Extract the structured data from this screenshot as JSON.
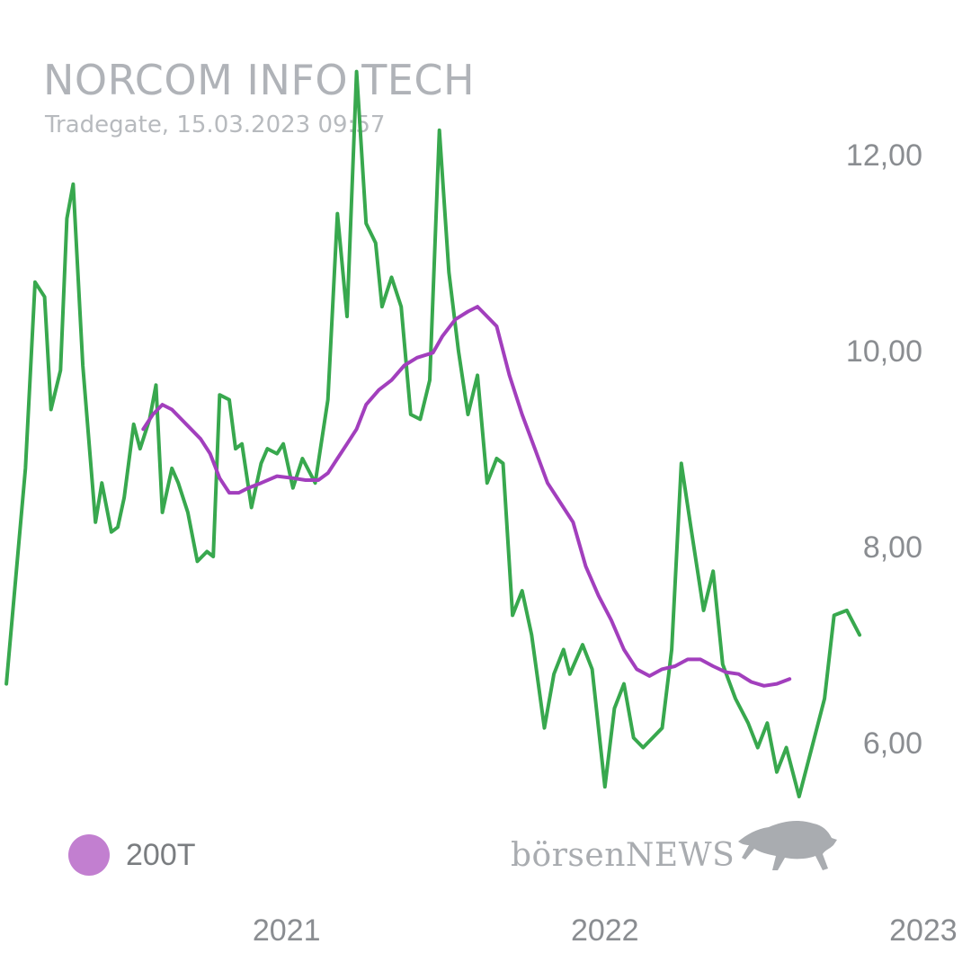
{
  "header": {
    "title": "NORCOM INFO TECH",
    "subtitle": "Tradegate, 15.03.2023 09:57"
  },
  "legend": {
    "label": "200T",
    "color": "#c27fd0"
  },
  "watermark": {
    "text": "börsenNEWS",
    "icon": "bull-icon"
  },
  "colors": {
    "price_line": "#38a84e",
    "ma_line": "#a23fbd",
    "axis_text": "#8a8d91"
  },
  "chart_data": {
    "type": "line",
    "title": "NORCOM INFO TECH",
    "subtitle": "Tradegate, 15.03.2023 09:57",
    "xlabel": "",
    "ylabel": "",
    "x_range": [
      2020.1,
      2023.15
    ],
    "y_range": [
      5.0,
      12.8
    ],
    "y_ticks": [
      {
        "value": 6,
        "label": "6,00"
      },
      {
        "value": 8,
        "label": "8,00"
      },
      {
        "value": 10,
        "label": "10,00"
      },
      {
        "value": 12,
        "label": "12,00"
      }
    ],
    "x_ticks": [
      {
        "value": 2021.0,
        "label": "2021"
      },
      {
        "value": 2022.0,
        "label": "2022"
      },
      {
        "value": 2023.0,
        "label": "2023"
      }
    ],
    "grid": false,
    "legend_position": "bottom-left",
    "series": [
      {
        "color": "#38a84e",
        "points": [
          [
            2020.12,
            6.6
          ],
          [
            2020.18,
            8.8
          ],
          [
            2020.21,
            10.7
          ],
          [
            2020.24,
            10.55
          ],
          [
            2020.26,
            9.4
          ],
          [
            2020.29,
            9.8
          ],
          [
            2020.31,
            11.35
          ],
          [
            2020.33,
            11.7
          ],
          [
            2020.36,
            9.85
          ],
          [
            2020.4,
            8.25
          ],
          [
            2020.42,
            8.65
          ],
          [
            2020.45,
            8.15
          ],
          [
            2020.47,
            8.2
          ],
          [
            2020.49,
            8.5
          ],
          [
            2020.52,
            9.25
          ],
          [
            2020.54,
            9.0
          ],
          [
            2020.57,
            9.3
          ],
          [
            2020.59,
            9.65
          ],
          [
            2020.61,
            8.35
          ],
          [
            2020.64,
            8.8
          ],
          [
            2020.66,
            8.65
          ],
          [
            2020.69,
            8.35
          ],
          [
            2020.72,
            7.85
          ],
          [
            2020.75,
            7.95
          ],
          [
            2020.77,
            7.9
          ],
          [
            2020.79,
            9.55
          ],
          [
            2020.82,
            9.5
          ],
          [
            2020.84,
            9.0
          ],
          [
            2020.86,
            9.05
          ],
          [
            2020.89,
            8.4
          ],
          [
            2020.92,
            8.85
          ],
          [
            2020.94,
            9.0
          ],
          [
            2020.97,
            8.95
          ],
          [
            2020.99,
            9.05
          ],
          [
            2021.02,
            8.6
          ],
          [
            2021.05,
            8.9
          ],
          [
            2021.09,
            8.65
          ],
          [
            2021.13,
            9.5
          ],
          [
            2021.16,
            11.4
          ],
          [
            2021.19,
            10.35
          ],
          [
            2021.22,
            12.85
          ],
          [
            2021.25,
            11.3
          ],
          [
            2021.28,
            11.1
          ],
          [
            2021.3,
            10.45
          ],
          [
            2021.33,
            10.75
          ],
          [
            2021.36,
            10.45
          ],
          [
            2021.39,
            9.35
          ],
          [
            2021.42,
            9.3
          ],
          [
            2021.45,
            9.7
          ],
          [
            2021.48,
            12.25
          ],
          [
            2021.51,
            10.8
          ],
          [
            2021.54,
            10.0
          ],
          [
            2021.57,
            9.35
          ],
          [
            2021.6,
            9.75
          ],
          [
            2021.63,
            8.65
          ],
          [
            2021.66,
            8.9
          ],
          [
            2021.68,
            8.85
          ],
          [
            2021.71,
            7.3
          ],
          [
            2021.74,
            7.55
          ],
          [
            2021.77,
            7.1
          ],
          [
            2021.81,
            6.15
          ],
          [
            2021.84,
            6.7
          ],
          [
            2021.87,
            6.95
          ],
          [
            2021.89,
            6.7
          ],
          [
            2021.93,
            7.0
          ],
          [
            2021.96,
            6.75
          ],
          [
            2022.0,
            5.55
          ],
          [
            2022.03,
            6.35
          ],
          [
            2022.06,
            6.6
          ],
          [
            2022.09,
            6.05
          ],
          [
            2022.12,
            5.95
          ],
          [
            2022.15,
            6.05
          ],
          [
            2022.18,
            6.15
          ],
          [
            2022.21,
            6.95
          ],
          [
            2022.24,
            8.85
          ],
          [
            2022.27,
            8.2
          ],
          [
            2022.31,
            7.35
          ],
          [
            2022.34,
            7.75
          ],
          [
            2022.37,
            6.8
          ],
          [
            2022.41,
            6.45
          ],
          [
            2022.45,
            6.2
          ],
          [
            2022.48,
            5.95
          ],
          [
            2022.51,
            6.2
          ],
          [
            2022.54,
            5.7
          ],
          [
            2022.57,
            5.95
          ],
          [
            2022.61,
            5.45
          ],
          [
            2022.65,
            5.95
          ],
          [
            2022.69,
            6.45
          ],
          [
            2022.72,
            7.3
          ],
          [
            2022.76,
            7.35
          ],
          [
            2022.8,
            7.1
          ]
        ]
      },
      {
        "name": "200T",
        "color": "#a23fbd",
        "points": [
          [
            2020.55,
            9.2
          ],
          [
            2020.58,
            9.35
          ],
          [
            2020.61,
            9.45
          ],
          [
            2020.64,
            9.4
          ],
          [
            2020.67,
            9.3
          ],
          [
            2020.7,
            9.2
          ],
          [
            2020.73,
            9.1
          ],
          [
            2020.76,
            8.95
          ],
          [
            2020.79,
            8.7
          ],
          [
            2020.82,
            8.55
          ],
          [
            2020.85,
            8.55
          ],
          [
            2020.88,
            8.6
          ],
          [
            2020.92,
            8.65
          ],
          [
            2020.97,
            8.72
          ],
          [
            2021.02,
            8.7
          ],
          [
            2021.06,
            8.68
          ],
          [
            2021.1,
            8.68
          ],
          [
            2021.13,
            8.75
          ],
          [
            2021.16,
            8.9
          ],
          [
            2021.19,
            9.05
          ],
          [
            2021.22,
            9.2
          ],
          [
            2021.25,
            9.45
          ],
          [
            2021.29,
            9.6
          ],
          [
            2021.33,
            9.7
          ],
          [
            2021.37,
            9.85
          ],
          [
            2021.41,
            9.93
          ],
          [
            2021.46,
            9.98
          ],
          [
            2021.49,
            10.15
          ],
          [
            2021.53,
            10.32
          ],
          [
            2021.57,
            10.4
          ],
          [
            2021.6,
            10.45
          ],
          [
            2021.63,
            10.35
          ],
          [
            2021.66,
            10.25
          ],
          [
            2021.7,
            9.75
          ],
          [
            2021.74,
            9.35
          ],
          [
            2021.78,
            9.0
          ],
          [
            2021.82,
            8.65
          ],
          [
            2021.86,
            8.45
          ],
          [
            2021.9,
            8.25
          ],
          [
            2021.94,
            7.8
          ],
          [
            2021.98,
            7.5
          ],
          [
            2022.02,
            7.25
          ],
          [
            2022.06,
            6.95
          ],
          [
            2022.1,
            6.75
          ],
          [
            2022.14,
            6.68
          ],
          [
            2022.18,
            6.75
          ],
          [
            2022.22,
            6.78
          ],
          [
            2022.26,
            6.85
          ],
          [
            2022.3,
            6.85
          ],
          [
            2022.34,
            6.78
          ],
          [
            2022.38,
            6.72
          ],
          [
            2022.42,
            6.7
          ],
          [
            2022.46,
            6.62
          ],
          [
            2022.5,
            6.58
          ],
          [
            2022.54,
            6.6
          ],
          [
            2022.58,
            6.65
          ]
        ]
      }
    ]
  }
}
